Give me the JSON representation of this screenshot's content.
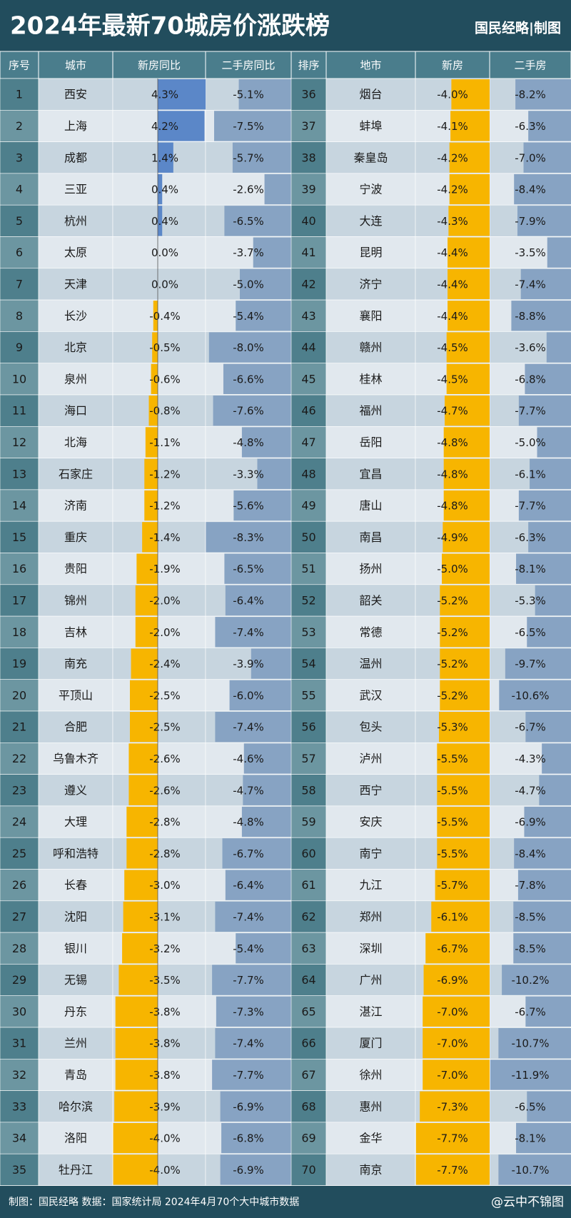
{
  "header": {
    "title": "2024年最新70城房价涨跌榜",
    "brand": "国民经略|制图"
  },
  "table": {
    "columns": [
      "序号",
      "城市",
      "新房同比",
      "二手房同比",
      "排序",
      "地市",
      "新房",
      "二手房"
    ],
    "left": [
      [
        1,
        "西安",
        4.3,
        "4.3%",
        -5.1,
        "-5.1%"
      ],
      [
        2,
        "上海",
        4.2,
        "4.2%",
        -7.5,
        "-7.5%"
      ],
      [
        3,
        "成都",
        1.4,
        "1.4%",
        -5.7,
        "-5.7%"
      ],
      [
        4,
        "三亚",
        0.4,
        "0.4%",
        -2.6,
        "-2.6%"
      ],
      [
        5,
        "杭州",
        0.4,
        "0.4%",
        -6.5,
        "-6.5%"
      ],
      [
        6,
        "太原",
        0,
        "0.0%",
        -3.7,
        "-3.7%"
      ],
      [
        7,
        "天津",
        0,
        "0.0%",
        -5,
        "-5.0%"
      ],
      [
        8,
        "长沙",
        -0.4,
        "-0.4%",
        -5.4,
        "-5.4%"
      ],
      [
        9,
        "北京",
        -0.5,
        "-0.5%",
        -8,
        "-8.0%"
      ],
      [
        10,
        "泉州",
        -0.6,
        "-0.6%",
        -6.6,
        "-6.6%"
      ],
      [
        11,
        "海口",
        -0.8,
        "-0.8%",
        -7.6,
        "-7.6%"
      ],
      [
        12,
        "北海",
        -1.1,
        "-1.1%",
        -4.8,
        "-4.8%"
      ],
      [
        13,
        "石家庄",
        -1.2,
        "-1.2%",
        -3.3,
        "-3.3%"
      ],
      [
        14,
        "济南",
        -1.2,
        "-1.2%",
        -5.6,
        "-5.6%"
      ],
      [
        15,
        "重庆",
        -1.4,
        "-1.4%",
        -8.3,
        "-8.3%"
      ],
      [
        16,
        "贵阳",
        -1.9,
        "-1.9%",
        -6.5,
        "-6.5%"
      ],
      [
        17,
        "锦州",
        -2,
        "-2.0%",
        -6.4,
        "-6.4%"
      ],
      [
        18,
        "吉林",
        -2,
        "-2.0%",
        -7.4,
        "-7.4%"
      ],
      [
        19,
        "南充",
        -2.4,
        "-2.4%",
        -3.9,
        "-3.9%"
      ],
      [
        20,
        "平顶山",
        -2.5,
        "-2.5%",
        -6,
        "-6.0%"
      ],
      [
        21,
        "合肥",
        -2.5,
        "-2.5%",
        -7.4,
        "-7.4%"
      ],
      [
        22,
        "乌鲁木齐",
        -2.6,
        "-2.6%",
        -4.6,
        "-4.6%"
      ],
      [
        23,
        "遵义",
        -2.6,
        "-2.6%",
        -4.7,
        "-4.7%"
      ],
      [
        24,
        "大理",
        -2.8,
        "-2.8%",
        -4.8,
        "-4.8%"
      ],
      [
        25,
        "呼和浩特",
        -2.8,
        "-2.8%",
        -6.7,
        "-6.7%"
      ],
      [
        26,
        "长春",
        -3,
        "-3.0%",
        -6.4,
        "-6.4%"
      ],
      [
        27,
        "沈阳",
        -3.1,
        "-3.1%",
        -7.4,
        "-7.4%"
      ],
      [
        28,
        "银川",
        -3.2,
        "-3.2%",
        -5.4,
        "-5.4%"
      ],
      [
        29,
        "无锡",
        -3.5,
        "-3.5%",
        -7.7,
        "-7.7%"
      ],
      [
        30,
        "丹东",
        -3.8,
        "-3.8%",
        -7.3,
        "-7.3%"
      ],
      [
        31,
        "兰州",
        -3.8,
        "-3.8%",
        -7.4,
        "-7.4%"
      ],
      [
        32,
        "青岛",
        -3.8,
        "-3.8%",
        -7.7,
        "-7.7%"
      ],
      [
        33,
        "哈尔滨",
        -3.9,
        "-3.9%",
        -6.9,
        "-6.9%"
      ],
      [
        34,
        "洛阳",
        -4,
        "-4.0%",
        -6.8,
        "-6.8%"
      ],
      [
        35,
        "牡丹江",
        -4,
        "-4.0%",
        -6.9,
        "-6.9%"
      ]
    ],
    "right": [
      [
        36,
        "烟台",
        -4,
        "-4.0%",
        -8.2,
        "-8.2%"
      ],
      [
        37,
        "蚌埠",
        -4.1,
        "-4.1%",
        -6.3,
        "-6.3%"
      ],
      [
        38,
        "秦皇岛",
        -4.2,
        "-4.2%",
        -7,
        "-7.0%"
      ],
      [
        39,
        "宁波",
        -4.2,
        "-4.2%",
        -8.4,
        "-8.4%"
      ],
      [
        40,
        "大连",
        -4.3,
        "-4.3%",
        -7.9,
        "-7.9%"
      ],
      [
        41,
        "昆明",
        -4.4,
        "-4.4%",
        -3.5,
        "-3.5%"
      ],
      [
        42,
        "济宁",
        -4.4,
        "-4.4%",
        -7.4,
        "-7.4%"
      ],
      [
        43,
        "襄阳",
        -4.4,
        "-4.4%",
        -8.8,
        "-8.8%"
      ],
      [
        44,
        "赣州",
        -4.5,
        "-4.5%",
        -3.6,
        "-3.6%"
      ],
      [
        45,
        "桂林",
        -4.5,
        "-4.5%",
        -6.8,
        "-6.8%"
      ],
      [
        46,
        "福州",
        -4.7,
        "-4.7%",
        -7.7,
        "-7.7%"
      ],
      [
        47,
        "岳阳",
        -4.8,
        "-4.8%",
        -5,
        "-5.0%"
      ],
      [
        48,
        "宜昌",
        -4.8,
        "-4.8%",
        -6.1,
        "-6.1%"
      ],
      [
        49,
        "唐山",
        -4.8,
        "-4.8%",
        -7.7,
        "-7.7%"
      ],
      [
        50,
        "南昌",
        -4.9,
        "-4.9%",
        -6.3,
        "-6.3%"
      ],
      [
        51,
        "扬州",
        -5,
        "-5.0%",
        -8.1,
        "-8.1%"
      ],
      [
        52,
        "韶关",
        -5.2,
        "-5.2%",
        -5.3,
        "-5.3%"
      ],
      [
        53,
        "常德",
        -5.2,
        "-5.2%",
        -6.5,
        "-6.5%"
      ],
      [
        54,
        "温州",
        -5.2,
        "-5.2%",
        -9.7,
        "-9.7%"
      ],
      [
        55,
        "武汉",
        -5.2,
        "-5.2%",
        -10.6,
        "-10.6%"
      ],
      [
        56,
        "包头",
        -5.3,
        "-5.3%",
        -6.7,
        "-6.7%"
      ],
      [
        57,
        "泸州",
        -5.5,
        "-5.5%",
        -4.3,
        "-4.3%"
      ],
      [
        58,
        "西宁",
        -5.5,
        "-5.5%",
        -4.7,
        "-4.7%"
      ],
      [
        59,
        "安庆",
        -5.5,
        "-5.5%",
        -6.9,
        "-6.9%"
      ],
      [
        60,
        "南宁",
        -5.5,
        "-5.5%",
        -8.4,
        "-8.4%"
      ],
      [
        61,
        "九江",
        -5.7,
        "-5.7%",
        -7.8,
        "-7.8%"
      ],
      [
        62,
        "郑州",
        -6.1,
        "-6.1%",
        -8.5,
        "-8.5%"
      ],
      [
        63,
        "深圳",
        -6.7,
        "-6.7%",
        -8.5,
        "-8.5%"
      ],
      [
        64,
        "广州",
        -6.9,
        "-6.9%",
        -10.2,
        "-10.2%"
      ],
      [
        65,
        "湛江",
        -7,
        "-7.0%",
        -6.7,
        "-6.7%"
      ],
      [
        66,
        "厦门",
        -7,
        "-7.0%",
        -10.7,
        "-10.7%"
      ],
      [
        67,
        "徐州",
        -7,
        "-7.0%",
        -11.9,
        "-11.9%"
      ],
      [
        68,
        "惠州",
        -7.3,
        "-7.3%",
        -6.5,
        "-6.5%"
      ],
      [
        69,
        "金华",
        -7.7,
        "-7.7%",
        -8.1,
        "-8.1%"
      ],
      [
        70,
        "南京",
        -7.7,
        "-7.7%",
        -10.7,
        "-10.7%"
      ]
    ]
  },
  "footer": {
    "credit": "制图：国民经略  数据：国家统计局  2024年4月70个大中城市数据",
    "watermark": "@云中不锦图"
  }
}
